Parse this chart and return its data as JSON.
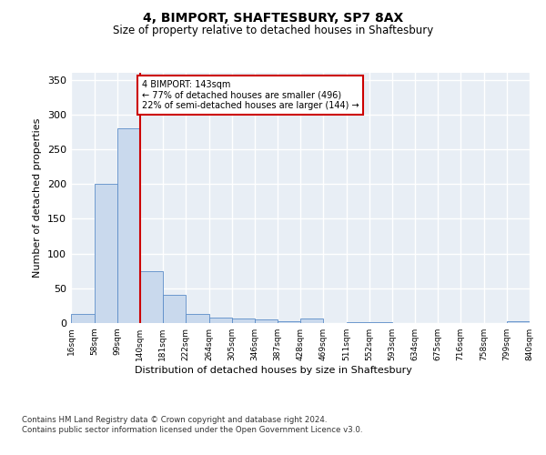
{
  "title": "4, BIMPORT, SHAFTESBURY, SP7 8AX",
  "subtitle": "Size of property relative to detached houses in Shaftesbury",
  "xlabel": "Distribution of detached houses by size in Shaftesbury",
  "ylabel": "Number of detached properties",
  "bar_color": "#c9d9ed",
  "bar_edge_color": "#5b8cc8",
  "bin_edges": [
    16,
    58,
    99,
    140,
    181,
    222,
    264,
    305,
    346,
    387,
    428,
    469,
    511,
    552,
    593,
    634,
    675,
    716,
    758,
    799,
    840
  ],
  "bar_heights": [
    13,
    200,
    280,
    75,
    40,
    13,
    8,
    6,
    5,
    3,
    6,
    0,
    1,
    1,
    0,
    0,
    0,
    0,
    0,
    2
  ],
  "tick_labels": [
    "16sqm",
    "58sqm",
    "99sqm",
    "140sqm",
    "181sqm",
    "222sqm",
    "264sqm",
    "305sqm",
    "346sqm",
    "387sqm",
    "428sqm",
    "469sqm",
    "511sqm",
    "552sqm",
    "593sqm",
    "634sqm",
    "675sqm",
    "716sqm",
    "758sqm",
    "799sqm",
    "840sqm"
  ],
  "property_line_x": 140,
  "annotation_text": "4 BIMPORT: 143sqm\n← 77% of detached houses are smaller (496)\n22% of semi-detached houses are larger (144) →",
  "annotation_box_color": "#ffffff",
  "annotation_box_edge": "#cc0000",
  "red_line_color": "#cc0000",
  "ylim": [
    0,
    360
  ],
  "yticks": [
    0,
    50,
    100,
    150,
    200,
    250,
    300,
    350
  ],
  "background_color": "#e8eef5",
  "footer_text": "Contains HM Land Registry data © Crown copyright and database right 2024.\nContains public sector information licensed under the Open Government Licence v3.0.",
  "grid_color": "#ffffff",
  "fig_bg_color": "#ffffff"
}
